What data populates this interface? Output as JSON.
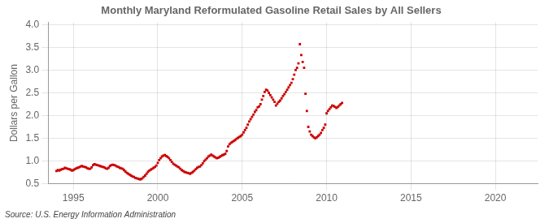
{
  "chart_data": {
    "type": "scatter",
    "title": "Monthly Maryland Reformulated Gasoline Retail Sales by All Sellers",
    "y_label": "Dollars per Gallon",
    "annotation": "Source: U.S. Energy Information Administration",
    "color": "#cc0000",
    "marker": "square",
    "grid": true,
    "xlim": [
      1993.5,
      2022.5
    ],
    "ylim": [
      0.5,
      4.05
    ],
    "xticks": [
      1995,
      2000,
      2005,
      2010,
      2015,
      2020
    ],
    "yticks": [
      0.5,
      {
        "value": 1.0,
        "label": "1.0"
      },
      1.5,
      {
        "value": 2.0,
        "label": "2.0"
      },
      2.5,
      {
        "value": 3.0,
        "label": "3.0"
      },
      3.5,
      {
        "value": 4.0,
        "label": "4.0"
      }
    ],
    "x": [
      1994.0,
      1994.083,
      1994.167,
      1994.25,
      1994.333,
      1994.417,
      1994.5,
      1994.583,
      1994.667,
      1994.75,
      1994.833,
      1994.917,
      1995.0,
      1995.083,
      1995.167,
      1995.25,
      1995.333,
      1995.417,
      1995.5,
      1995.583,
      1995.667,
      1995.75,
      1995.833,
      1995.917,
      1996.0,
      1996.083,
      1996.167,
      1996.25,
      1996.333,
      1996.417,
      1996.5,
      1996.583,
      1996.667,
      1996.75,
      1996.833,
      1996.917,
      1997.0,
      1997.083,
      1997.167,
      1997.25,
      1997.333,
      1997.417,
      1997.5,
      1997.583,
      1997.667,
      1997.75,
      1997.833,
      1997.917,
      1998.0,
      1998.083,
      1998.167,
      1998.25,
      1998.333,
      1998.417,
      1998.5,
      1998.583,
      1998.667,
      1998.75,
      1998.833,
      1998.917,
      1999.0,
      1999.083,
      1999.167,
      1999.25,
      1999.333,
      1999.417,
      1999.5,
      1999.583,
      1999.667,
      1999.75,
      1999.833,
      1999.917,
      2000.0,
      2000.083,
      2000.167,
      2000.25,
      2000.333,
      2000.417,
      2000.5,
      2000.583,
      2000.667,
      2000.75,
      2000.833,
      2000.917,
      2001.0,
      2001.083,
      2001.167,
      2001.25,
      2001.333,
      2001.417,
      2001.5,
      2001.583,
      2001.667,
      2001.75,
      2001.833,
      2001.917,
      2002.0,
      2002.083,
      2002.167,
      2002.25,
      2002.333,
      2002.417,
      2002.5,
      2002.583,
      2002.667,
      2002.75,
      2002.833,
      2002.917,
      2003.0,
      2003.083,
      2003.167,
      2003.25,
      2003.333,
      2003.417,
      2003.5,
      2003.583,
      2003.667,
      2003.75,
      2003.833,
      2003.917,
      2004.0,
      2004.083,
      2004.167,
      2004.25,
      2004.333,
      2004.417,
      2004.5,
      2004.583,
      2004.667,
      2004.75,
      2004.833,
      2004.917,
      2005.0,
      2005.083,
      2005.167,
      2005.25,
      2005.333,
      2005.417,
      2005.5,
      2005.583,
      2005.667,
      2005.75,
      2005.833,
      2005.917,
      2006.0,
      2006.083,
      2006.167,
      2006.25,
      2006.333,
      2006.417,
      2006.5,
      2006.583,
      2006.667,
      2006.75,
      2006.833,
      2006.917,
      2007.0,
      2007.083,
      2007.167,
      2007.25,
      2007.333,
      2007.417,
      2007.5,
      2007.583,
      2007.667,
      2007.75,
      2007.833,
      2007.917,
      2008.0,
      2008.083,
      2008.167,
      2008.25,
      2008.333,
      2008.417,
      2008.5,
      2008.583,
      2008.667,
      2008.75,
      2008.833,
      2008.917,
      2009.0,
      2009.083,
      2009.167,
      2009.25,
      2009.333,
      2009.417,
      2009.5,
      2009.583,
      2009.667,
      2009.75,
      2009.833,
      2009.917,
      2010.0,
      2010.083,
      2010.167,
      2010.25,
      2010.333,
      2010.417,
      2010.5,
      2010.583,
      2010.667,
      2010.75,
      2010.833,
      2010.917
    ],
    "values": [
      0.78,
      0.8,
      0.79,
      0.81,
      0.82,
      0.83,
      0.85,
      0.84,
      0.83,
      0.82,
      0.81,
      0.79,
      0.8,
      0.82,
      0.84,
      0.85,
      0.86,
      0.88,
      0.89,
      0.88,
      0.87,
      0.86,
      0.84,
      0.83,
      0.83,
      0.86,
      0.91,
      0.93,
      0.92,
      0.91,
      0.9,
      0.89,
      0.88,
      0.87,
      0.86,
      0.84,
      0.83,
      0.85,
      0.89,
      0.91,
      0.92,
      0.91,
      0.9,
      0.88,
      0.87,
      0.85,
      0.84,
      0.83,
      0.8,
      0.77,
      0.74,
      0.72,
      0.7,
      0.68,
      0.66,
      0.65,
      0.63,
      0.62,
      0.61,
      0.6,
      0.6,
      0.62,
      0.65,
      0.68,
      0.72,
      0.76,
      0.79,
      0.81,
      0.83,
      0.85,
      0.87,
      0.9,
      0.96,
      1.02,
      1.06,
      1.1,
      1.12,
      1.13,
      1.11,
      1.09,
      1.06,
      1.02,
      0.98,
      0.94,
      0.92,
      0.9,
      0.88,
      0.86,
      0.83,
      0.8,
      0.78,
      0.76,
      0.75,
      0.74,
      0.73,
      0.72,
      0.74,
      0.76,
      0.79,
      0.82,
      0.85,
      0.87,
      0.88,
      0.91,
      0.95,
      1.0,
      1.03,
      1.06,
      1.1,
      1.12,
      1.14,
      1.12,
      1.1,
      1.08,
      1.06,
      1.07,
      1.09,
      1.11,
      1.13,
      1.14,
      1.16,
      1.22,
      1.32,
      1.37,
      1.4,
      1.42,
      1.44,
      1.46,
      1.49,
      1.51,
      1.53,
      1.55,
      1.58,
      1.63,
      1.68,
      1.73,
      1.8,
      1.87,
      1.92,
      1.97,
      2.02,
      2.08,
      2.12,
      2.18,
      2.2,
      2.25,
      2.35,
      2.43,
      2.52,
      2.57,
      2.55,
      2.5,
      2.45,
      2.4,
      2.35,
      2.3,
      2.22,
      2.26,
      2.3,
      2.33,
      2.38,
      2.43,
      2.47,
      2.52,
      2.57,
      2.62,
      2.67,
      2.72,
      2.8,
      2.9,
      3.0,
      3.05,
      3.15,
      3.57,
      3.33,
      3.18,
      3.05,
      2.48,
      2.1,
      1.75,
      1.65,
      1.58,
      1.55,
      1.52,
      1.5,
      1.52,
      1.55,
      1.58,
      1.62,
      1.68,
      1.73,
      1.8,
      2.05,
      2.1,
      2.14,
      2.18,
      2.22,
      2.21,
      2.19,
      2.17,
      2.19,
      2.22,
      2.25,
      2.28
    ]
  }
}
